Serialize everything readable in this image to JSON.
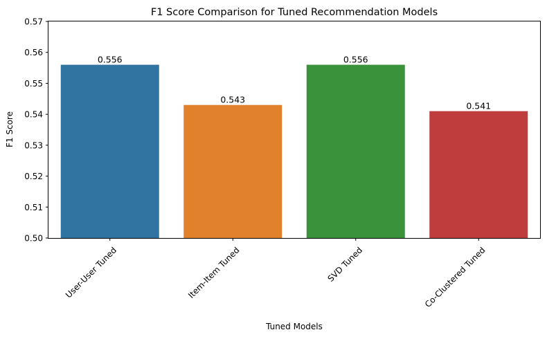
{
  "chart_data": {
    "type": "bar",
    "title": "F1 Score Comparison for Tuned Recommendation Models",
    "xlabel": "Tuned Models",
    "ylabel": "F1 Score",
    "categories": [
      "User-User Tuned",
      "Item-Item Tuned",
      "SVD Tuned",
      "Co-Clustered Tuned"
    ],
    "values": [
      0.556,
      0.543,
      0.556,
      0.541
    ],
    "data_labels": [
      "0.556",
      "0.543",
      "0.556",
      "0.541"
    ],
    "colors": [
      "#3274a1",
      "#e1812c",
      "#3a923a",
      "#c03d3e"
    ],
    "ylim": [
      0.5,
      0.57
    ],
    "yticks": [
      "0.50",
      "0.51",
      "0.52",
      "0.53",
      "0.54",
      "0.55",
      "0.56",
      "0.57"
    ],
    "grid": false,
    "legend": false
  }
}
